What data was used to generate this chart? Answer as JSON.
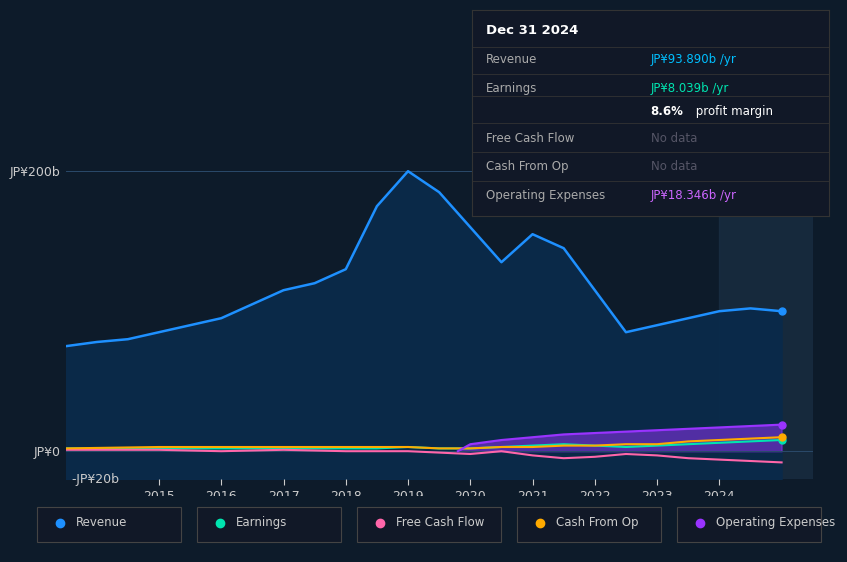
{
  "bg_color": "#0d1b2a",
  "plot_bg_color": "#0d1b2a",
  "grid_color": "#1e3a5f",
  "text_color": "#cccccc",
  "title_color": "#ffffff",
  "info_box": {
    "bg": "#111827",
    "border": "#333333",
    "title": "Dec 31 2024",
    "rows": [
      {
        "label": "Revenue",
        "value": "JP¥93.890b /yr",
        "value_color": "#00bfff",
        "separator": true
      },
      {
        "label": "Earnings",
        "value": "JP¥8.039b /yr",
        "value_color": "#00e5b0",
        "separator": false
      },
      {
        "label": "",
        "value": "8.6% profit margin",
        "value_color": "#ffffff",
        "separator": true
      },
      {
        "label": "Free Cash Flow",
        "value": "No data",
        "value_color": "#555566",
        "separator": true
      },
      {
        "label": "Cash From Op",
        "value": "No data",
        "value_color": "#555566",
        "separator": true
      },
      {
        "label": "Operating Expenses",
        "value": "JP¥18.346b /yr",
        "value_color": "#cc66ff",
        "separator": false
      }
    ]
  },
  "ylim": [
    -20,
    220
  ],
  "yticks": [
    0,
    200
  ],
  "ytick_labels": [
    "JP¥0",
    "JP¥200b"
  ],
  "extra_ytick_label": "-JP¥20b",
  "xlim_start": 2013.5,
  "xlim_end": 2025.5,
  "xticks": [
    2015,
    2016,
    2017,
    2018,
    2019,
    2020,
    2021,
    2022,
    2023,
    2024
  ],
  "revenue_color": "#1e90ff",
  "earnings_color": "#00e5b0",
  "fcf_color": "#ff66aa",
  "cashfromop_color": "#ffaa00",
  "opex_color": "#9933ff",
  "legend": [
    {
      "label": "Revenue",
      "color": "#1e90ff"
    },
    {
      "label": "Earnings",
      "color": "#00e5b0"
    },
    {
      "label": "Free Cash Flow",
      "color": "#ff66aa"
    },
    {
      "label": "Cash From Op",
      "color": "#ffaa00"
    },
    {
      "label": "Operating Expenses",
      "color": "#9933ff"
    }
  ],
  "revenue_x": [
    2013.5,
    2014.0,
    2014.5,
    2015.0,
    2015.5,
    2016.0,
    2016.5,
    2017.0,
    2017.5,
    2018.0,
    2018.5,
    2019.0,
    2019.5,
    2020.0,
    2020.5,
    2021.0,
    2021.5,
    2022.0,
    2022.5,
    2023.0,
    2023.5,
    2024.0,
    2024.5,
    2025.0
  ],
  "revenue_y": [
    75,
    78,
    80,
    85,
    90,
    95,
    105,
    115,
    120,
    130,
    175,
    200,
    185,
    160,
    135,
    155,
    145,
    115,
    85,
    90,
    95,
    100,
    102,
    100
  ],
  "earnings_x": [
    2013.5,
    2014.5,
    2015.5,
    2016.5,
    2017.5,
    2018.5,
    2019.0,
    2019.5,
    2020.0,
    2020.5,
    2021.0,
    2021.5,
    2022.0,
    2022.5,
    2023.0,
    2023.5,
    2024.0,
    2024.5,
    2025.0
  ],
  "earnings_y": [
    2,
    2,
    2,
    2,
    2,
    2,
    3,
    2,
    2,
    3,
    4,
    5,
    4,
    3,
    4,
    5,
    6,
    7,
    8
  ],
  "fcf_x": [
    2013.5,
    2015.0,
    2016.0,
    2017.0,
    2018.0,
    2019.0,
    2019.5,
    2020.0,
    2020.5,
    2021.0,
    2021.5,
    2022.0,
    2022.5,
    2023.0,
    2023.5,
    2024.0,
    2024.5,
    2025.0
  ],
  "fcf_y": [
    1,
    1,
    0,
    1,
    0,
    0,
    -1,
    -2,
    0,
    -3,
    -5,
    -4,
    -2,
    -3,
    -5,
    -6,
    -7,
    -8
  ],
  "cashfromop_x": [
    2013.5,
    2015.0,
    2016.0,
    2017.0,
    2018.0,
    2019.0,
    2019.5,
    2020.0,
    2020.5,
    2021.0,
    2021.5,
    2022.0,
    2022.5,
    2023.0,
    2023.5,
    2024.0,
    2024.5,
    2025.0
  ],
  "cashfromop_y": [
    2,
    3,
    3,
    3,
    3,
    3,
    2,
    2,
    3,
    3,
    4,
    4,
    5,
    5,
    7,
    8,
    9,
    10
  ],
  "opex_x": [
    2019.8,
    2020.0,
    2020.5,
    2021.0,
    2021.5,
    2022.0,
    2022.5,
    2023.0,
    2023.5,
    2024.0,
    2024.5,
    2025.0
  ],
  "opex_y": [
    0,
    5,
    8,
    10,
    12,
    13,
    14,
    15,
    16,
    17,
    18,
    19
  ],
  "shade_x_start": 2024.0,
  "shade_x_end": 2025.5
}
